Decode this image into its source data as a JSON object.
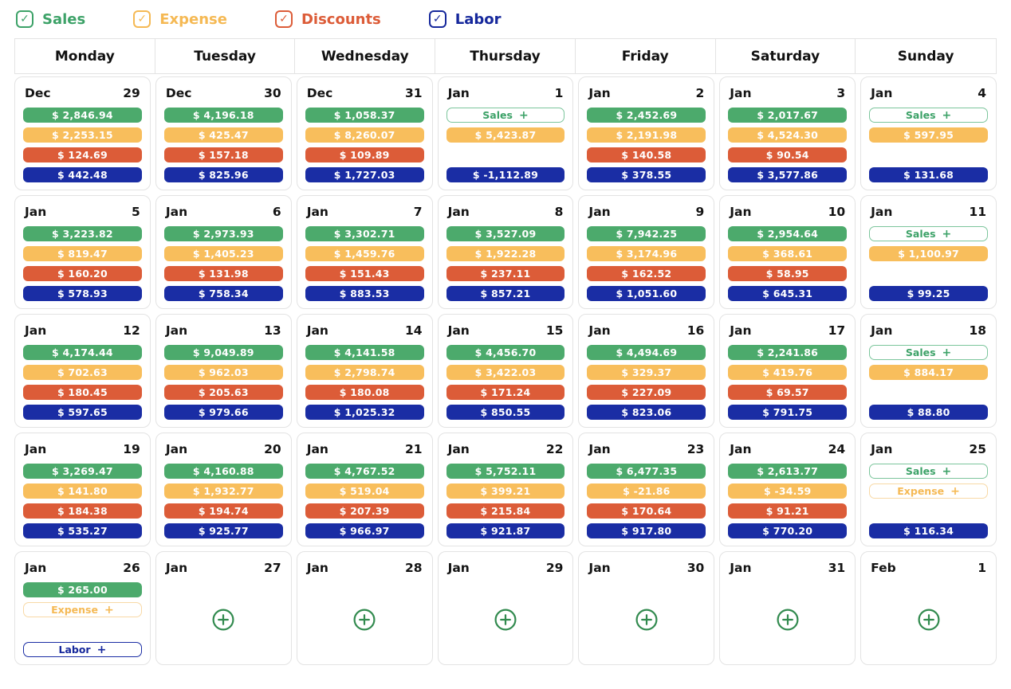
{
  "series": {
    "sales": {
      "label": "Sales",
      "fill": "#4CAA6C",
      "text": "#3DA268",
      "add_border": "#7CC59C"
    },
    "expense": {
      "label": "Expense",
      "fill": "#F8BE5C",
      "text": "#F5B954",
      "add_border": "#F8D9A6"
    },
    "discounts": {
      "label": "Discounts",
      "fill": "#DC5C38",
      "text": "#DC5C38",
      "add_border": "#E89A82"
    },
    "labor": {
      "label": "Labor",
      "fill": "#1A2DA4",
      "text": "#16289C",
      "add_border": "#1A2DA4"
    }
  },
  "filters": [
    {
      "id": "sales",
      "label": "Sales",
      "checked": true
    },
    {
      "id": "expense",
      "label": "Expense",
      "checked": true
    },
    {
      "id": "discounts",
      "label": "Discounts",
      "checked": true
    },
    {
      "id": "labor",
      "label": "Labor",
      "checked": true
    }
  ],
  "icons": {
    "checkmark": "✓",
    "plus": "+",
    "add_circle_color": "#318A4E"
  },
  "weekdays": [
    "Monday",
    "Tuesday",
    "Wednesday",
    "Thursday",
    "Friday",
    "Saturday",
    "Sunday"
  ],
  "weeks": [
    {
      "days": [
        {
          "month": "Dec",
          "day": "29",
          "sales": "$ 2,846.94",
          "expense": "$ 2,253.15",
          "discounts": "$ 124.69",
          "labor": "$ 442.48"
        },
        {
          "month": "Dec",
          "day": "30",
          "sales": "$ 4,196.18",
          "expense": "$ 425.47",
          "discounts": "$ 157.18",
          "labor": "$ 825.96"
        },
        {
          "month": "Dec",
          "day": "31",
          "sales": "$ 1,058.37",
          "expense": "$ 8,260.07",
          "discounts": "$ 109.89",
          "labor": "$ 1,727.03"
        },
        {
          "month": "Jan",
          "day": "1",
          "sales": "+",
          "expense": "$ 5,423.87",
          "discounts": null,
          "labor": "$ -1,112.89"
        },
        {
          "month": "Jan",
          "day": "2",
          "sales": "$ 2,452.69",
          "expense": "$ 2,191.98",
          "discounts": "$ 140.58",
          "labor": "$ 378.55"
        },
        {
          "month": "Jan",
          "day": "3",
          "sales": "$ 2,017.67",
          "expense": "$ 4,524.30",
          "discounts": "$ 90.54",
          "labor": "$ 3,577.86"
        },
        {
          "month": "Jan",
          "day": "4",
          "sales": "+",
          "expense": "$ 597.95",
          "discounts": null,
          "labor": "$ 131.68"
        }
      ]
    },
    {
      "days": [
        {
          "month": "Jan",
          "day": "5",
          "sales": "$ 3,223.82",
          "expense": "$ 819.47",
          "discounts": "$ 160.20",
          "labor": "$ 578.93"
        },
        {
          "month": "Jan",
          "day": "6",
          "sales": "$ 2,973.93",
          "expense": "$ 1,405.23",
          "discounts": "$ 131.98",
          "labor": "$ 758.34"
        },
        {
          "month": "Jan",
          "day": "7",
          "sales": "$ 3,302.71",
          "expense": "$ 1,459.76",
          "discounts": "$ 151.43",
          "labor": "$ 883.53"
        },
        {
          "month": "Jan",
          "day": "8",
          "sales": "$ 3,527.09",
          "expense": "$ 1,922.28",
          "discounts": "$ 237.11",
          "labor": "$ 857.21"
        },
        {
          "month": "Jan",
          "day": "9",
          "sales": "$ 7,942.25",
          "expense": "$ 3,174.96",
          "discounts": "$ 162.52",
          "labor": "$ 1,051.60"
        },
        {
          "month": "Jan",
          "day": "10",
          "sales": "$ 2,954.64",
          "expense": "$ 368.61",
          "discounts": "$ 58.95",
          "labor": "$ 645.31"
        },
        {
          "month": "Jan",
          "day": "11",
          "sales": "+",
          "expense": "$ 1,100.97",
          "discounts": null,
          "labor": "$ 99.25"
        }
      ]
    },
    {
      "days": [
        {
          "month": "Jan",
          "day": "12",
          "sales": "$ 4,174.44",
          "expense": "$ 702.63",
          "discounts": "$ 180.45",
          "labor": "$ 597.65"
        },
        {
          "month": "Jan",
          "day": "13",
          "sales": "$ 9,049.89",
          "expense": "$ 962.03",
          "discounts": "$ 205.63",
          "labor": "$ 979.66"
        },
        {
          "month": "Jan",
          "day": "14",
          "sales": "$ 4,141.58",
          "expense": "$ 2,798.74",
          "discounts": "$ 180.08",
          "labor": "$ 1,025.32"
        },
        {
          "month": "Jan",
          "day": "15",
          "sales": "$ 4,456.70",
          "expense": "$ 3,422.03",
          "discounts": "$ 171.24",
          "labor": "$ 850.55"
        },
        {
          "month": "Jan",
          "day": "16",
          "sales": "$ 4,494.69",
          "expense": "$ 329.37",
          "discounts": "$ 227.09",
          "labor": "$ 823.06"
        },
        {
          "month": "Jan",
          "day": "17",
          "sales": "$ 2,241.86",
          "expense": "$ 419.76",
          "discounts": "$ 69.57",
          "labor": "$ 791.75"
        },
        {
          "month": "Jan",
          "day": "18",
          "sales": "+",
          "expense": "$ 884.17",
          "discounts": null,
          "labor": "$ 88.80"
        }
      ]
    },
    {
      "days": [
        {
          "month": "Jan",
          "day": "19",
          "sales": "$ 3,269.47",
          "expense": "$ 141.80",
          "discounts": "$ 184.38",
          "labor": "$ 535.27"
        },
        {
          "month": "Jan",
          "day": "20",
          "sales": "$ 4,160.88",
          "expense": "$ 1,932.77",
          "discounts": "$ 194.74",
          "labor": "$ 925.77"
        },
        {
          "month": "Jan",
          "day": "21",
          "sales": "$ 4,767.52",
          "expense": "$ 519.04",
          "discounts": "$ 207.39",
          "labor": "$ 966.97"
        },
        {
          "month": "Jan",
          "day": "22",
          "sales": "$ 5,752.11",
          "expense": "$ 399.21",
          "discounts": "$ 215.84",
          "labor": "$ 921.87"
        },
        {
          "month": "Jan",
          "day": "23",
          "sales": "$ 6,477.35",
          "expense": "$ -21.86",
          "discounts": "$ 170.64",
          "labor": "$ 917.80"
        },
        {
          "month": "Jan",
          "day": "24",
          "sales": "$ 2,613.77",
          "expense": "$ -34.59",
          "discounts": "$ 91.21",
          "labor": "$ 770.20"
        },
        {
          "month": "Jan",
          "day": "25",
          "sales": "+",
          "expense": "+",
          "discounts": null,
          "labor": "$ 116.34"
        }
      ]
    },
    {
      "days": [
        {
          "month": "Jan",
          "day": "26",
          "sales": "$ 265.00",
          "expense": "+",
          "discounts": null,
          "labor": "+"
        },
        {
          "month": "Jan",
          "day": "27",
          "empty": true
        },
        {
          "month": "Jan",
          "day": "28",
          "empty": true
        },
        {
          "month": "Jan",
          "day": "29",
          "empty": true
        },
        {
          "month": "Jan",
          "day": "30",
          "empty": true
        },
        {
          "month": "Jan",
          "day": "31",
          "empty": true
        },
        {
          "month": "Feb",
          "day": "1",
          "empty": true
        }
      ]
    }
  ]
}
